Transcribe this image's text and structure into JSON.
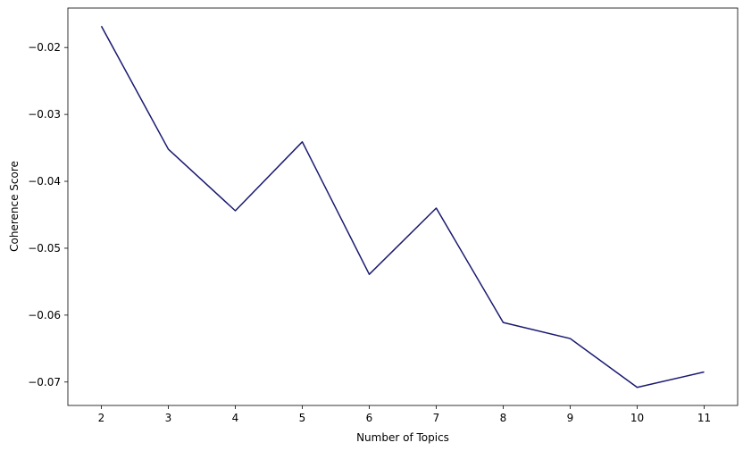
{
  "chart_data": {
    "type": "line",
    "title": "",
    "xlabel": "Number of Topics",
    "ylabel": "Coherence Score",
    "x": [
      2,
      3,
      4,
      5,
      6,
      7,
      8,
      9,
      10,
      11
    ],
    "series": [
      {
        "values": [
          -0.0168,
          -0.0352,
          -0.0444,
          -0.0341,
          -0.0539,
          -0.044,
          -0.0611,
          -0.0635,
          -0.0708,
          -0.0685
        ],
        "color": "#191970"
      }
    ],
    "xticks": [
      2,
      3,
      4,
      5,
      6,
      7,
      8,
      9,
      10,
      11
    ],
    "xtick_labels": [
      "2",
      "3",
      "4",
      "5",
      "6",
      "7",
      "8",
      "9",
      "10",
      "11"
    ],
    "yticks": [
      -0.02,
      -0.03,
      -0.04,
      -0.05,
      -0.06,
      -0.07
    ],
    "ytick_labels": [
      "−0.02",
      "−0.03",
      "−0.04",
      "−0.05",
      "−0.06",
      "−0.07"
    ],
    "xlim": [
      1.5,
      11.5
    ],
    "ylim": [
      -0.0735,
      -0.0141
    ],
    "grid": false,
    "legend": "none"
  }
}
